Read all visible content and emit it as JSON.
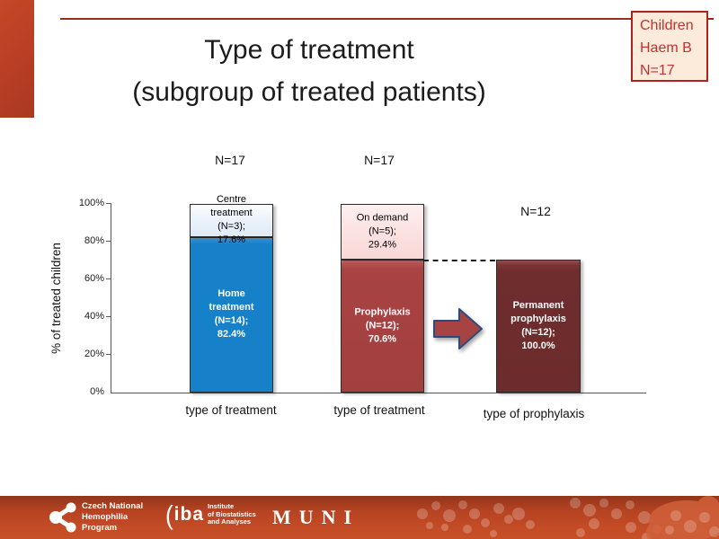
{
  "slide": {
    "title_line1": "Type of treatment",
    "title_line2": "(subgroup of treated patients)",
    "badge": {
      "lines": [
        "Children",
        "Haem B",
        "N=17"
      ],
      "bg": "#fcebdb",
      "border": "#ab241c",
      "text_color": "#bf3330"
    }
  },
  "chart": {
    "y_axis_title": "% of treated children",
    "yticks": [
      "100%",
      "80%",
      "60%",
      "40%",
      "20%",
      "0%"
    ],
    "n_labels": [
      "N=17",
      "N=17",
      "N=12"
    ],
    "x_labels": [
      "type of treatment",
      "type of treatment",
      "type of prophylaxis"
    ],
    "bars": {
      "bar1": {
        "bottom_label": "Home\ntreatment\n(N=14);\n82.4%",
        "top_label": "Centre\ntreatment\n(N=3);\n17.6%",
        "bottom_pct": 82.4,
        "top_pct": 17.6
      },
      "bar2": {
        "bottom_label": "Prophylaxis\n(N=12);\n70.6%",
        "top_label": "On demand\n(N=5);\n29.4%",
        "bottom_pct": 70.6,
        "top_pct": 29.4
      },
      "bar3": {
        "label": "Permanent\nprophylaxis\n(N=12);\n100.0%",
        "drawn_pct": 70.6
      }
    }
  },
  "chart_data": {
    "type": "bar",
    "subtype": "stacked-percent",
    "title": "Type of treatment (subgroup of treated patients)",
    "ylabel": "% of treated children",
    "ylim": [
      0,
      100
    ],
    "ytick_step": 20,
    "grid": false,
    "categories": [
      "type of treatment",
      "type of treatment",
      "type of prophylaxis"
    ],
    "bars": [
      {
        "n_label": "N=17",
        "x_label": "type of treatment",
        "segments": [
          {
            "name": "Home treatment",
            "n": 14,
            "value_pct": 82.4,
            "color": "#1680c8",
            "label_color": "#ffffff"
          },
          {
            "name": "Centre treatment",
            "n": 3,
            "value_pct": 17.6,
            "color": "#e9f1fa",
            "label_color": "#000000"
          }
        ]
      },
      {
        "n_label": "N=17",
        "x_label": "type of treatment",
        "segments": [
          {
            "name": "Prophylaxis",
            "n": 12,
            "value_pct": 70.6,
            "color": "#a84343",
            "label_color": "#ffffff"
          },
          {
            "name": "On demand",
            "n": 5,
            "value_pct": 29.4,
            "color": "#fbe1e0",
            "label_color": "#000000"
          }
        ]
      },
      {
        "n_label": "N=12",
        "x_label": "type of prophylaxis",
        "segments": [
          {
            "name": "Permanent prophylaxis",
            "n": 12,
            "value_pct": 100.0,
            "drawn_height_pct": 70.6,
            "color": "#702d2e",
            "label_color": "#ffffff"
          }
        ]
      }
    ],
    "annotations": [
      {
        "type": "dashed-connector",
        "from": "top of Prophylaxis segment (70.6%)",
        "to": "top of Permanent prophylaxis bar"
      },
      {
        "type": "block-arrow",
        "between": [
          "bar2",
          "bar3"
        ],
        "color": "#a84343",
        "outline": "#2e4a7c"
      }
    ],
    "accent_colors": {
      "slide_accent": "#b83e24",
      "top_line": "#a12a1d",
      "footer_band": "#c44c26",
      "blue": "#1680c8",
      "light_blue": "#e9f1fa",
      "red": "#a84343",
      "pink": "#fbe1e0",
      "maroon": "#702d2e"
    }
  },
  "footer": {
    "cnhp": {
      "lines": [
        "Czech National",
        "Hemophilia",
        "Program"
      ]
    },
    "iba": {
      "name": "iba",
      "lines": [
        "Institute",
        "of Biostatistics",
        "and Analyses"
      ]
    },
    "muni": "MUNI"
  }
}
